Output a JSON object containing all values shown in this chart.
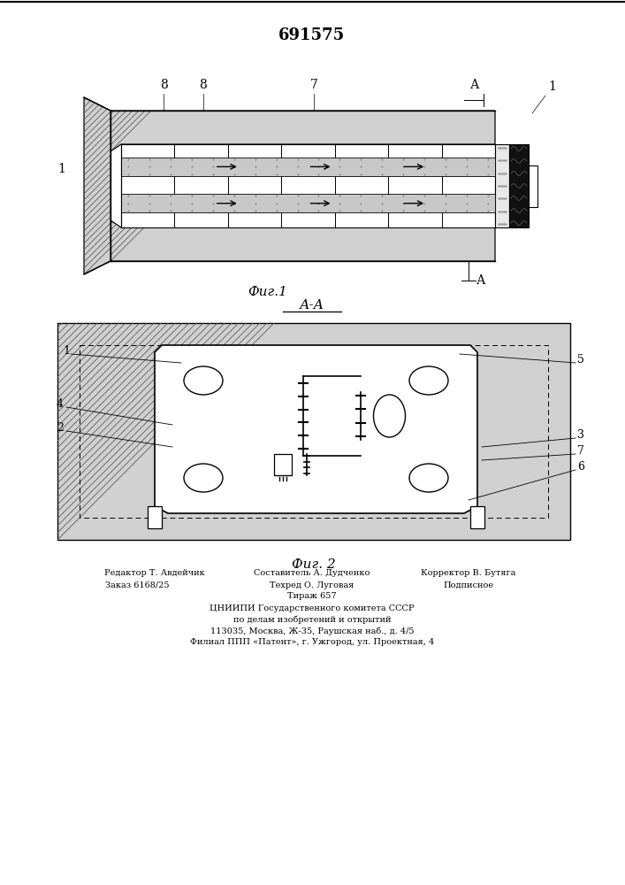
{
  "patent_number": "691575",
  "fig1_caption": "Фиг.1",
  "fig2_caption": "Фиг. 2",
  "section_label": "А-А",
  "background_color": "#ffffff",
  "footer_line1_left": "Редактор Т. Авдейчик",
  "footer_line1_mid": "Составитель А. Дудченко",
  "footer_line1_right": "Корректор В. Бутяга",
  "footer_line2_left": "Заказ 6168/25",
  "footer_line2_mid": "Техред О. Луговая",
  "footer_line2_right": "Подписное",
  "footer_line3_left": "Тираж 657",
  "footer_lines": [
    "ЦНИИПИ Государственного комитета СССР",
    "по делам изобретений и открытий",
    "113035, Москва, Ж-35, Раушская наб., д. 4/5",
    "Филиал ППП «Патент», г. Ужгород, ул. Проектная, 4"
  ]
}
